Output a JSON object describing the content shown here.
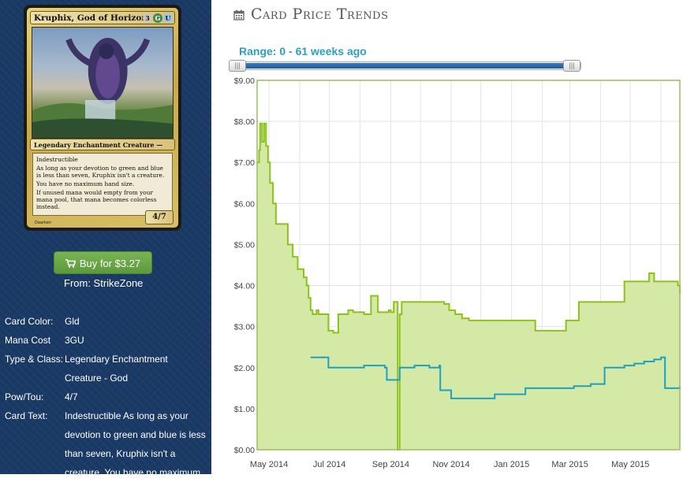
{
  "card": {
    "name": "Kruphix, God of Horizons",
    "mana_symbols": [
      {
        "symbol": "3",
        "color": "#cdc6bd"
      },
      {
        "symbol": "G",
        "color": "#3f8a4d"
      },
      {
        "symbol": "U",
        "color": "#9bc7e8"
      }
    ],
    "type_line": "Legendary Enchantment Creature — God",
    "rules_text": [
      "Indestructible",
      "As long as your devotion to green and blue is less than seven, Kruphix isn't a creature.",
      "You have no maximum hand size.",
      "If unused mana would empty from your mana pool, that mana becomes colorless instead."
    ],
    "power_toughness": "4/7",
    "artist": "Daarken"
  },
  "buy": {
    "label": "Buy for $3.27",
    "from": "From: StrikeZone",
    "icon": "shopping-cart-icon",
    "color": "#6aa846"
  },
  "details": [
    {
      "key": "Card Color:",
      "value": "Gld"
    },
    {
      "key": "Mana Cost",
      "value": "3GU"
    },
    {
      "key": "Type & Class:",
      "value": "Legendary Enchantment Creature - God"
    },
    {
      "key": "Pow/Tou:",
      "value": "4/7"
    },
    {
      "key": "Card Text:",
      "value": "Indestructible As long as your devotion to green and blue is less than seven, Kruphix isn't a creature. You have no maximum"
    }
  ],
  "section": {
    "title": "Card Price Trends",
    "icon": "calendar-icon"
  },
  "range": {
    "label": "Range: 0 - 61 weeks ago",
    "min_weeks": 0,
    "max_weeks": 61,
    "selected_fraction": [
      0,
      1
    ]
  },
  "chart_data": {
    "type": "area",
    "x_tick_labels": [
      "May 2014",
      "Jul 2014",
      "Sep 2014",
      "Nov 2014",
      "Jan 2015",
      "Mar 2015",
      "May 2015"
    ],
    "y_tick_labels": [
      "$0.00",
      "$1.00",
      "$2.00",
      "$3.00",
      "$4.00",
      "$5.00",
      "$6.00",
      "$7.00",
      "$8.00",
      "$9.00"
    ],
    "xlim": [
      "2014-04-19",
      "2015-06-20"
    ],
    "ylim": [
      0,
      9
    ],
    "grid": true,
    "colors": {
      "series_1": "#8cc21c",
      "series_1_fill": "#d4e9a6",
      "series_2": "#1fa0c0"
    },
    "series": [
      {
        "x": [
          "2014-04-19",
          "2014-04-21",
          "2014-04-22",
          "2014-04-24",
          "2014-04-26",
          "2014-04-28",
          "2014-04-30",
          "2014-05-02",
          "2014-05-05",
          "2014-05-08",
          "2014-05-12",
          "2014-05-15",
          "2014-05-20",
          "2014-05-25",
          "2014-05-30",
          "2014-06-05",
          "2014-06-08",
          "2014-06-10",
          "2014-06-12",
          "2014-06-14",
          "2014-06-18",
          "2014-06-20",
          "2014-06-25",
          "2014-06-30",
          "2014-07-05",
          "2014-07-10",
          "2014-07-15",
          "2014-07-20",
          "2014-07-25",
          "2014-07-30",
          "2014-08-05",
          "2014-08-12",
          "2014-08-19",
          "2014-08-25",
          "2014-08-30",
          "2014-09-01",
          "2014-09-04",
          "2014-09-08",
          "2014-09-10",
          "2014-09-12",
          "2014-09-14",
          "2014-09-18",
          "2014-09-25",
          "2014-10-05",
          "2014-10-15",
          "2014-10-25",
          "2014-10-30",
          "2014-11-05",
          "2014-11-12",
          "2014-11-19",
          "2014-11-26",
          "2014-12-05",
          "2014-12-15",
          "2014-12-25",
          "2015-01-05",
          "2015-01-15",
          "2015-01-25",
          "2015-02-05",
          "2015-02-15",
          "2015-02-25",
          "2015-03-01",
          "2015-03-10",
          "2015-03-20",
          "2015-03-31",
          "2015-04-10",
          "2015-04-20",
          "2015-04-25",
          "2015-05-05",
          "2015-05-15",
          "2015-05-20",
          "2015-05-25",
          "2015-06-01",
          "2015-06-10",
          "2015-06-18",
          "2015-06-20"
        ],
        "y": [
          7.0,
          7.3,
          7.95,
          7.5,
          7.95,
          7.4,
          7.0,
          6.5,
          6.0,
          5.5,
          5.5,
          5.5,
          5.0,
          4.7,
          4.4,
          4.2,
          4.0,
          3.7,
          3.4,
          3.3,
          3.4,
          3.3,
          3.3,
          2.9,
          2.85,
          3.3,
          3.3,
          3.4,
          3.35,
          3.35,
          3.3,
          3.75,
          3.35,
          3.35,
          3.4,
          3.35,
          3.6,
          0.0,
          3.3,
          3.6,
          3.6,
          3.6,
          3.6,
          3.6,
          3.6,
          3.55,
          3.4,
          3.3,
          3.2,
          3.15,
          3.15,
          3.15,
          3.15,
          3.15,
          3.15,
          3.15,
          2.9,
          2.9,
          2.9,
          3.15,
          3.15,
          3.6,
          3.6,
          3.6,
          3.6,
          3.6,
          4.1,
          4.1,
          4.1,
          4.3,
          4.1,
          4.1,
          4.1,
          4.0,
          3.8
        ]
      },
      {
        "x": [
          "2014-06-12",
          "2014-06-28",
          "2014-06-30",
          "2014-07-15",
          "2014-08-05",
          "2014-08-20",
          "2014-08-26",
          "2014-08-28",
          "2014-09-10",
          "2014-09-25",
          "2014-10-10",
          "2014-10-20",
          "2014-10-21",
          "2014-10-30",
          "2014-11-01",
          "2014-11-10",
          "2014-12-05",
          "2014-12-15",
          "2015-01-05",
          "2015-01-15",
          "2015-02-10",
          "2015-03-05",
          "2015-03-22",
          "2015-03-30",
          "2015-04-05",
          "2015-04-15",
          "2015-04-25",
          "2015-05-05",
          "2015-05-15",
          "2015-05-25",
          "2015-06-01",
          "2015-06-05",
          "2015-06-10",
          "2015-06-20"
        ],
        "y": [
          2.25,
          2.25,
          2.0,
          2.0,
          2.05,
          2.05,
          2.0,
          1.7,
          2.0,
          2.05,
          2.0,
          2.05,
          1.45,
          1.45,
          1.25,
          1.25,
          1.25,
          1.35,
          1.35,
          1.5,
          1.5,
          1.55,
          1.6,
          1.6,
          2.0,
          2.0,
          2.05,
          2.1,
          2.15,
          2.2,
          2.25,
          1.5,
          1.5,
          1.55
        ]
      }
    ]
  }
}
